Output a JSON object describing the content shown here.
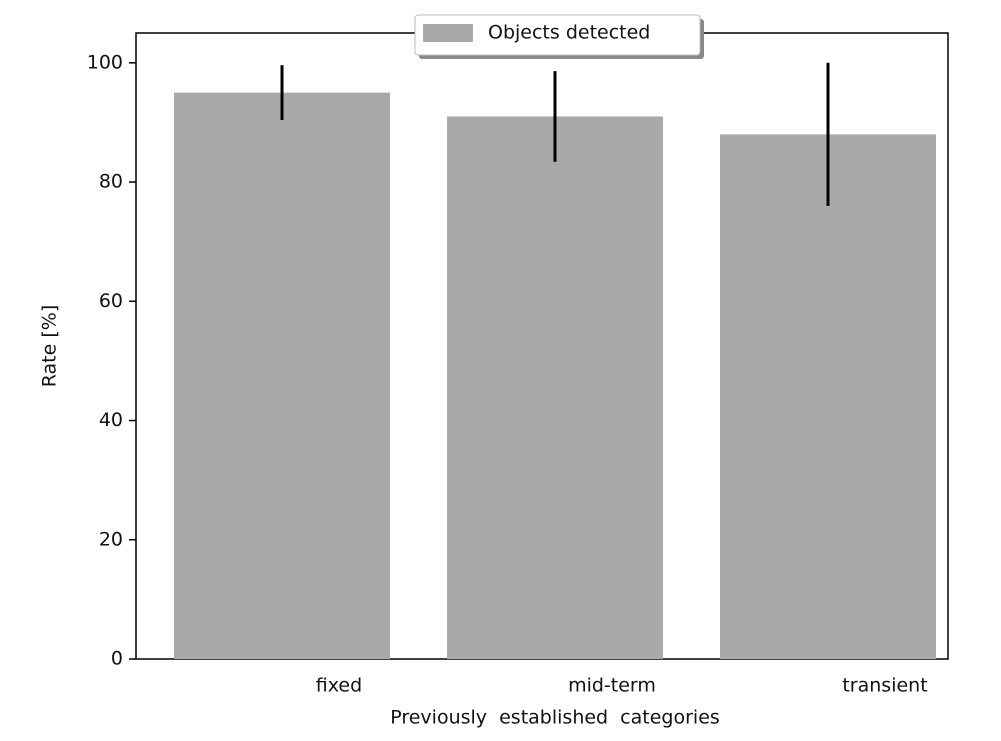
{
  "chart_data": {
    "type": "bar",
    "categories": [
      "fixed",
      "mid-term",
      "transient"
    ],
    "series": [
      {
        "name": "Objects detected",
        "color": "#a9a9a9",
        "values": [
          95,
          91,
          88
        ],
        "errors": [
          4.6,
          7.6,
          12
        ]
      }
    ],
    "ylabel": "Rate [%]",
    "xlabel": "Previously  established  categories",
    "ylim": [
      0,
      105
    ],
    "yticks": [
      0,
      20,
      40,
      60,
      80,
      100
    ],
    "legend": "upper center",
    "error_color": "#000000"
  }
}
